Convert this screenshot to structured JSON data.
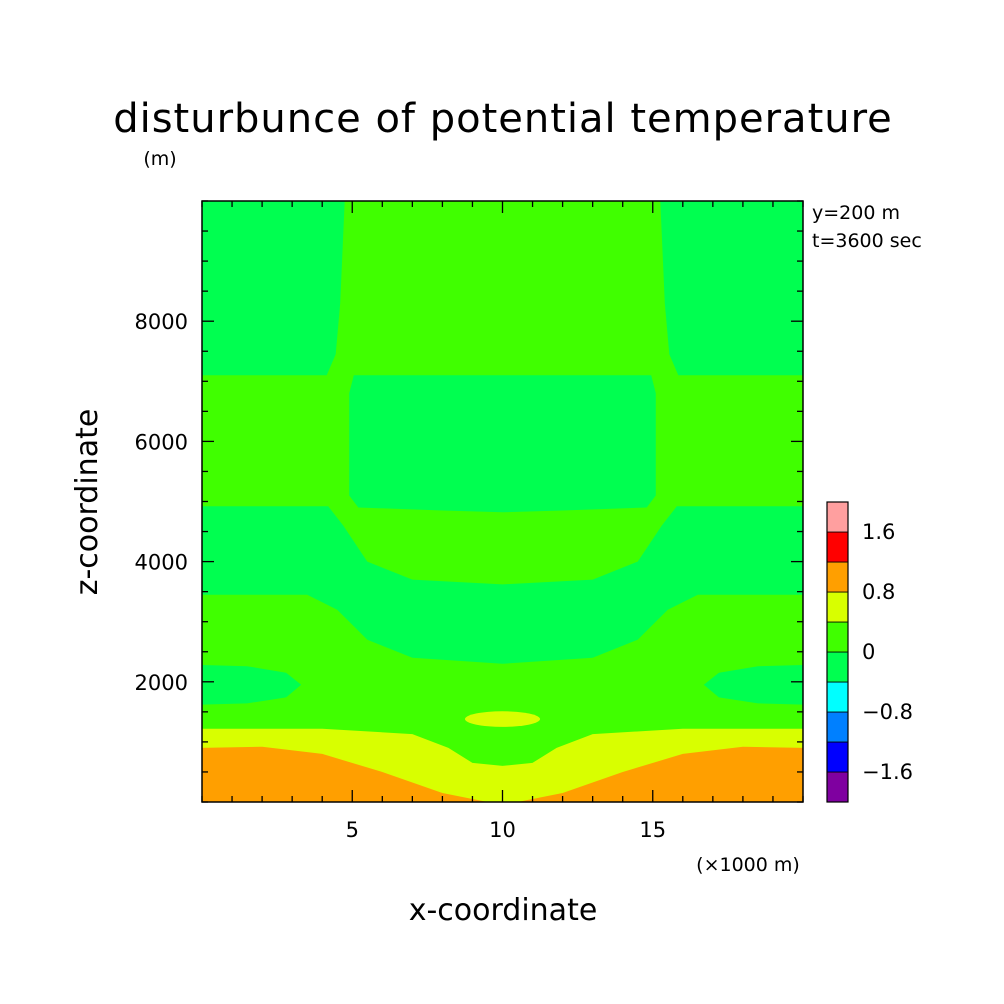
{
  "chart_data": {
    "type": "heatmap",
    "title": "disturbunce of potential temperature",
    "xlabel": "x-coordinate",
    "ylabel": "z-coordinate",
    "y_unit_label": "(m)",
    "x_unit_label": "(×1000 m)",
    "annotations": [
      "y=200 m",
      "t=3600 sec"
    ],
    "xlim": [
      0,
      20
    ],
    "ylim": [
      0,
      10000
    ],
    "x_ticks": [
      5,
      10,
      15
    ],
    "x_tick_labels": [
      "5",
      "10",
      "15"
    ],
    "y_ticks": [
      2000,
      4000,
      6000,
      8000
    ],
    "y_tick_labels": [
      "2000",
      "4000",
      "6000",
      "8000"
    ],
    "colorbar": {
      "levels": [
        -2.0,
        -1.6,
        -1.2,
        -0.8,
        -0.4,
        0,
        0.4,
        0.8,
        1.2,
        1.6,
        2.0
      ],
      "colors": [
        "#7f00a0",
        "#0000ff",
        "#0080ff",
        "#00ffff",
        "#00ff50",
        "#40ff00",
        "#d8ff00",
        "#ff9f00",
        "#ff0000",
        "#ff9f9f"
      ],
      "tick_values": [
        -1.6,
        -0.8,
        0,
        0.8,
        1.6
      ],
      "tick_labels": [
        "−1.6",
        "−0.8",
        "0",
        "0.8",
        "1.6"
      ]
    },
    "regions": [
      {
        "level": "0 to 0.4",
        "color": "#40ff00",
        "polygon": [
          [
            0,
            0
          ],
          [
            20,
            0
          ],
          [
            20,
            10000
          ],
          [
            0,
            10000
          ]
        ]
      },
      {
        "level": "-0.4 to 0",
        "color": "#00ff50",
        "polygon": [
          [
            0,
            7100
          ],
          [
            4.15,
            7100
          ],
          [
            4.45,
            7450
          ],
          [
            4.6,
            8300
          ],
          [
            4.75,
            9999
          ],
          [
            0,
            9999
          ]
        ]
      },
      {
        "level": "-0.4 to 0",
        "color": "#00ff50",
        "polygon": [
          [
            20,
            7100
          ],
          [
            15.85,
            7100
          ],
          [
            15.55,
            7450
          ],
          [
            15.4,
            8300
          ],
          [
            15.25,
            9999
          ],
          [
            20,
            9999
          ]
        ]
      },
      {
        "level": "-0.4 to 0",
        "color": "#00ff50",
        "polygon": [
          [
            5.05,
            7100
          ],
          [
            14.95,
            7100
          ],
          [
            15.1,
            6800
          ],
          [
            15.1,
            5100
          ],
          [
            14.8,
            4900
          ],
          [
            12,
            4850
          ],
          [
            10,
            4820
          ],
          [
            8,
            4850
          ],
          [
            5.2,
            4900
          ],
          [
            4.9,
            5100
          ],
          [
            4.9,
            6800
          ]
        ]
      },
      {
        "level": "-0.4 to 0",
        "color": "#00ff50",
        "polygon": [
          [
            0,
            4920
          ],
          [
            4.2,
            4920
          ],
          [
            4.7,
            4600
          ],
          [
            5.5,
            4000
          ],
          [
            7,
            3700
          ],
          [
            10,
            3620
          ],
          [
            13,
            3700
          ],
          [
            14.5,
            4000
          ],
          [
            15.3,
            4600
          ],
          [
            15.8,
            4920
          ],
          [
            20,
            4920
          ],
          [
            20,
            3450
          ],
          [
            16.5,
            3450
          ],
          [
            15.5,
            3200
          ],
          [
            14.5,
            2700
          ],
          [
            13,
            2400
          ],
          [
            10,
            2300
          ],
          [
            7,
            2400
          ],
          [
            5.5,
            2700
          ],
          [
            4.5,
            3200
          ],
          [
            3.5,
            3450
          ],
          [
            0,
            3450
          ]
        ]
      },
      {
        "level": "-0.4 to 0",
        "color": "#00ff50",
        "polygon": [
          [
            0,
            2280
          ],
          [
            1.5,
            2260
          ],
          [
            2.8,
            2150
          ],
          [
            3.3,
            1950
          ],
          [
            2.8,
            1740
          ],
          [
            1.5,
            1640
          ],
          [
            0,
            1620
          ]
        ]
      },
      {
        "level": "-0.4 to 0",
        "color": "#00ff50",
        "polygon": [
          [
            20,
            2280
          ],
          [
            18.5,
            2260
          ],
          [
            17.2,
            2150
          ],
          [
            16.7,
            1950
          ],
          [
            17.2,
            1740
          ],
          [
            18.5,
            1640
          ],
          [
            20,
            1620
          ]
        ]
      },
      {
        "level": "0.4 to 0.8",
        "color": "#d8ff00",
        "polygon": [
          [
            0,
            0
          ],
          [
            20,
            0
          ],
          [
            20,
            1220
          ],
          [
            16,
            1220
          ],
          [
            13,
            1130
          ],
          [
            11.8,
            900
          ],
          [
            11,
            650
          ],
          [
            10,
            600
          ],
          [
            9,
            650
          ],
          [
            8.2,
            900
          ],
          [
            7,
            1130
          ],
          [
            4,
            1220
          ],
          [
            0,
            1220
          ]
        ]
      },
      {
        "level": "0.4 to 0.8",
        "color": "#d8ff00",
        "ellipse": {
          "cx": 10,
          "cy": 1380,
          "rx": 1.25,
          "ry": 130
        }
      },
      {
        "level": "0.8 to 1.2",
        "color": "#ff9f00",
        "polygon": [
          [
            0,
            0
          ],
          [
            20,
            0
          ],
          [
            20,
            900
          ],
          [
            18,
            920
          ],
          [
            16,
            800
          ],
          [
            14,
            500
          ],
          [
            12,
            150
          ],
          [
            10.5,
            0
          ],
          [
            9.5,
            0
          ],
          [
            8,
            150
          ],
          [
            6,
            500
          ],
          [
            4,
            800
          ],
          [
            2,
            920
          ],
          [
            0,
            900
          ]
        ]
      }
    ]
  }
}
